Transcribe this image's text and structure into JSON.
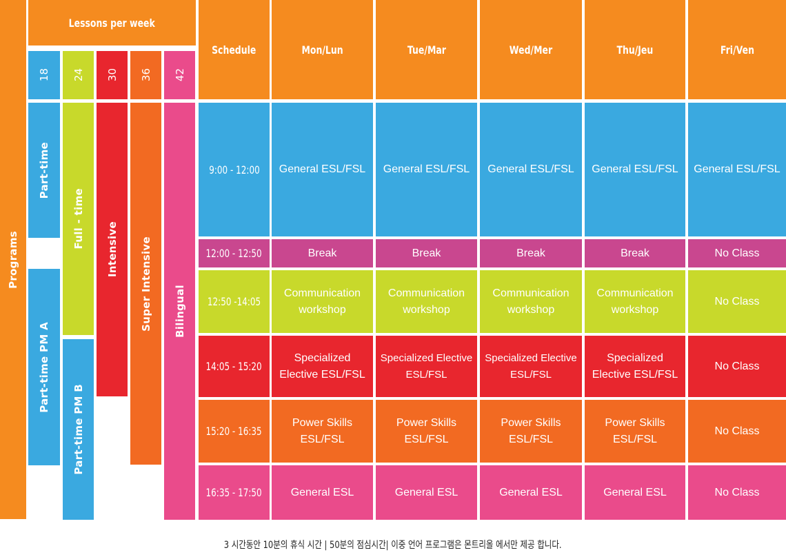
{
  "programs_title": "Programs",
  "lessons_title": "Lessons per week",
  "lessons": [
    "18",
    "24",
    "30",
    "36",
    "42"
  ],
  "programs": {
    "part_time": "Part-time",
    "part_time_pm_a": "Part-time PM A",
    "full_time": "Full - time",
    "part_time_pm_b": "Part-time PM B",
    "intensive": "Intensive",
    "super_intensive": "Super Intensive",
    "bilingual": "Bilingual"
  },
  "header": {
    "schedule": "Schedule",
    "days": [
      "Mon/Lun",
      "Tue/Mar",
      "Wed/Mer",
      "Thu/Jeu",
      "Fri/Ven"
    ]
  },
  "rows": [
    {
      "time": "9:00 - 12:00",
      "cells": [
        [
          "General ESL/FSL"
        ],
        [
          "General ESL/FSL"
        ],
        [
          "General ESL/FSL"
        ],
        [
          "General ESL/FSL"
        ],
        [
          "General ESL/FSL"
        ]
      ]
    },
    {
      "time": "12:00 - 12:50",
      "cells": [
        [
          "Break"
        ],
        [
          "Break"
        ],
        [
          "Break"
        ],
        [
          "Break"
        ],
        [
          "No Class"
        ]
      ]
    },
    {
      "time": "12:50 -14:05",
      "cells": [
        [
          "Communication",
          "workshop"
        ],
        [
          "Communication",
          "workshop"
        ],
        [
          "Communication",
          "workshop"
        ],
        [
          "Communication",
          "workshop"
        ],
        [
          "No Class"
        ]
      ]
    },
    {
      "time": "14:05 - 15:20",
      "cells": [
        [
          "Specialized",
          "Elective  ESL/FSL"
        ],
        [
          "Specialized Elective",
          "ESL/FSL"
        ],
        [
          "Specialized Elective",
          "ESL/FSL"
        ],
        [
          "Specialized",
          "Elective  ESL/FSL"
        ],
        [
          "No Class"
        ]
      ]
    },
    {
      "time": "15:20 - 16:35",
      "cells": [
        [
          "Power Skills",
          "ESL/FSL"
        ],
        [
          "Power Skills",
          "ESL/FSL"
        ],
        [
          "Power Skills",
          "ESL/FSL"
        ],
        [
          "Power Skills",
          "ESL/FSL"
        ],
        [
          "No Class"
        ]
      ]
    },
    {
      "time": "16:35 - 17:50",
      "cells": [
        [
          "General ESL"
        ],
        [
          "General ESL"
        ],
        [
          "General ESL"
        ],
        [
          "General ESL"
        ],
        [
          "No Class"
        ]
      ]
    }
  ],
  "footer": "3 시간동안 10분의 휴식 시간 | 50분의 점심시간| 이중 언어 프로그램은 몬트리올 에서만 제공 합니다.",
  "colors": {
    "orange": "#f58b1f",
    "orange_dark": "#f26a22",
    "blue": "#3aa9e0",
    "lime": "#c8d92b",
    "red": "#e8262e",
    "pink": "#ea4b8b",
    "magenta": "#c9478f"
  }
}
